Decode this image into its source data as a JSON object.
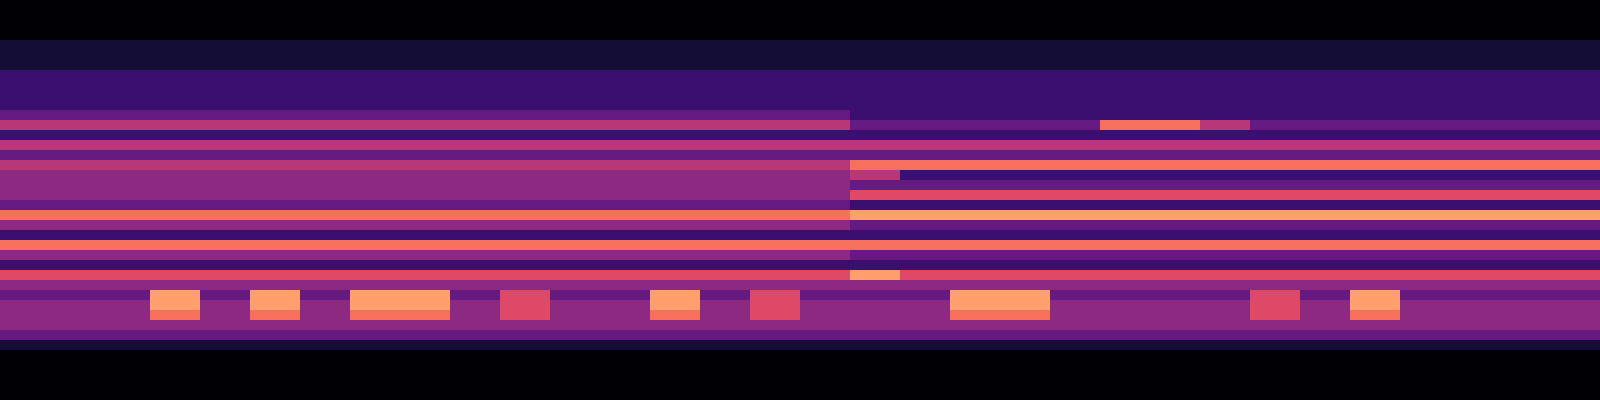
{
  "chart_data": {
    "type": "heatmap",
    "tick_labels": false,
    "zlim": [
      0,
      10
    ],
    "cells": [
      [
        0,
        0,
        0,
        0,
        0,
        0,
        0,
        0,
        0,
        0,
        0,
        0,
        0,
        0,
        0,
        0,
        0,
        0,
        0,
        0,
        0,
        0,
        0,
        0,
        0,
        0,
        0,
        0,
        0,
        0,
        0,
        0
      ],
      [
        0,
        0,
        0,
        0,
        0,
        0,
        0,
        0,
        0,
        0,
        0,
        0,
        0,
        0,
        0,
        0,
        0,
        0,
        0,
        0,
        0,
        0,
        0,
        0,
        0,
        0,
        0,
        0,
        0,
        0,
        0,
        0
      ],
      [
        0,
        0,
        0,
        0,
        0,
        0,
        0,
        0,
        0,
        0,
        0,
        0,
        0,
        0,
        0,
        0,
        0,
        0,
        0,
        0,
        0,
        0,
        0,
        0,
        0,
        0,
        0,
        0,
        0,
        0,
        0,
        0
      ],
      [
        0,
        0,
        0,
        0,
        0,
        0,
        0,
        0,
        0,
        0,
        0,
        0,
        0,
        0,
        0,
        0,
        0,
        0,
        0,
        0,
        0,
        0,
        0,
        0,
        0,
        0,
        0,
        0,
        0,
        0,
        0,
        0
      ],
      [
        1,
        1,
        1,
        1,
        1,
        1,
        1,
        1,
        1,
        1,
        1,
        1,
        1,
        1,
        1,
        1,
        1,
        1,
        1,
        1,
        1,
        1,
        1,
        1,
        1,
        1,
        1,
        1,
        1,
        1,
        1,
        1
      ],
      [
        1,
        1,
        1,
        1,
        1,
        1,
        1,
        1,
        1,
        1,
        1,
        1,
        1,
        1,
        1,
        1,
        1,
        1,
        1,
        1,
        1,
        1,
        1,
        1,
        1,
        1,
        1,
        1,
        1,
        1,
        1,
        1
      ],
      [
        1,
        1,
        1,
        1,
        1,
        1,
        1,
        1,
        1,
        1,
        1,
        1,
        1,
        1,
        1,
        1,
        1,
        1,
        1,
        1,
        1,
        1,
        1,
        1,
        1,
        1,
        1,
        1,
        1,
        1,
        1,
        1
      ],
      [
        2,
        2,
        2,
        2,
        2,
        2,
        2,
        2,
        2,
        2,
        2,
        2,
        2,
        2,
        2,
        2,
        2,
        2,
        2,
        2,
        2,
        2,
        2,
        2,
        2,
        2,
        2,
        2,
        2,
        2,
        2,
        2
      ],
      [
        2,
        2,
        2,
        2,
        2,
        2,
        2,
        2,
        2,
        2,
        2,
        2,
        2,
        2,
        2,
        2,
        2,
        2,
        2,
        2,
        2,
        2,
        2,
        2,
        2,
        2,
        2,
        2,
        2,
        2,
        2,
        2
      ],
      [
        2,
        2,
        2,
        2,
        2,
        2,
        2,
        2,
        2,
        2,
        2,
        2,
        2,
        2,
        2,
        2,
        2,
        2,
        2,
        2,
        2,
        2,
        2,
        2,
        2,
        2,
        2,
        2,
        2,
        2,
        2,
        2
      ],
      [
        2,
        2,
        2,
        2,
        2,
        2,
        2,
        2,
        2,
        2,
        2,
        2,
        2,
        2,
        2,
        2,
        2,
        2,
        2,
        2,
        2,
        2,
        2,
        2,
        2,
        2,
        2,
        2,
        2,
        2,
        2,
        2
      ],
      [
        3,
        3,
        3,
        3,
        3,
        3,
        3,
        3,
        3,
        3,
        3,
        3,
        3,
        3,
        3,
        3,
        3,
        2,
        2,
        2,
        2,
        2,
        2,
        2,
        2,
        2,
        2,
        2,
        2,
        2,
        2,
        2
      ],
      [
        5,
        5,
        5,
        5,
        5,
        5,
        5,
        5,
        5,
        5,
        5,
        5,
        5,
        5,
        5,
        5,
        5,
        3,
        3,
        3,
        3,
        3,
        7,
        7,
        5,
        3,
        3,
        3,
        3,
        3,
        3,
        3
      ],
      [
        2,
        2,
        2,
        2,
        2,
        2,
        2,
        2,
        2,
        2,
        2,
        2,
        2,
        2,
        2,
        2,
        2,
        2,
        2,
        2,
        2,
        2,
        2,
        2,
        2,
        2,
        2,
        2,
        2,
        2,
        2,
        2
      ],
      [
        5,
        5,
        5,
        5,
        5,
        5,
        5,
        5,
        5,
        5,
        5,
        5,
        5,
        5,
        5,
        5,
        5,
        5,
        5,
        5,
        5,
        5,
        5,
        5,
        5,
        5,
        5,
        5,
        5,
        5,
        5,
        5
      ],
      [
        3,
        3,
        3,
        3,
        3,
        3,
        3,
        3,
        3,
        3,
        3,
        3,
        3,
        3,
        3,
        3,
        3,
        3,
        3,
        3,
        3,
        3,
        3,
        3,
        3,
        3,
        3,
        3,
        3,
        3,
        3,
        3
      ],
      [
        5,
        5,
        5,
        5,
        5,
        5,
        5,
        5,
        5,
        5,
        5,
        5,
        5,
        5,
        5,
        5,
        5,
        7,
        7,
        7,
        7,
        7,
        7,
        7,
        7,
        7,
        7,
        7,
        7,
        7,
        7,
        7
      ],
      [
        4,
        4,
        4,
        4,
        4,
        4,
        4,
        4,
        4,
        4,
        4,
        4,
        4,
        4,
        4,
        4,
        4,
        5,
        2,
        2,
        2,
        2,
        2,
        2,
        2,
        2,
        2,
        2,
        2,
        2,
        2,
        2
      ],
      [
        4,
        4,
        4,
        4,
        4,
        4,
        4,
        4,
        4,
        4,
        4,
        4,
        4,
        4,
        4,
        4,
        4,
        3,
        3,
        3,
        3,
        3,
        3,
        3,
        3,
        3,
        3,
        3,
        3,
        3,
        3,
        3
      ],
      [
        4,
        4,
        4,
        4,
        4,
        4,
        4,
        4,
        4,
        4,
        4,
        4,
        4,
        4,
        4,
        4,
        4,
        6,
        6,
        6,
        6,
        6,
        6,
        6,
        6,
        6,
        6,
        6,
        6,
        6,
        6,
        6
      ],
      [
        3,
        3,
        3,
        3,
        3,
        3,
        3,
        3,
        3,
        3,
        3,
        3,
        3,
        3,
        3,
        3,
        3,
        2,
        2,
        2,
        2,
        2,
        2,
        2,
        2,
        2,
        2,
        2,
        2,
        2,
        2,
        2
      ],
      [
        7,
        7,
        7,
        7,
        7,
        7,
        7,
        7,
        7,
        7,
        7,
        7,
        7,
        7,
        7,
        7,
        7,
        8,
        8,
        8,
        8,
        8,
        8,
        8,
        8,
        8,
        8,
        8,
        8,
        8,
        8,
        8
      ],
      [
        4,
        4,
        4,
        4,
        4,
        4,
        4,
        4,
        4,
        4,
        4,
        4,
        4,
        4,
        4,
        4,
        4,
        3,
        3,
        3,
        3,
        3,
        3,
        3,
        3,
        3,
        3,
        3,
        3,
        3,
        3,
        3
      ],
      [
        2,
        2,
        2,
        2,
        2,
        2,
        2,
        2,
        2,
        2,
        2,
        2,
        2,
        2,
        2,
        2,
        2,
        2,
        2,
        2,
        2,
        2,
        2,
        2,
        2,
        2,
        2,
        2,
        2,
        2,
        2,
        2
      ],
      [
        7,
        7,
        7,
        7,
        7,
        7,
        7,
        7,
        7,
        7,
        7,
        7,
        7,
        7,
        7,
        7,
        7,
        7,
        7,
        7,
        7,
        7,
        7,
        7,
        7,
        7,
        7,
        7,
        7,
        7,
        7,
        7
      ],
      [
        4,
        4,
        4,
        4,
        4,
        4,
        4,
        4,
        4,
        4,
        4,
        4,
        4,
        4,
        4,
        4,
        4,
        3,
        3,
        3,
        3,
        3,
        3,
        3,
        3,
        3,
        3,
        3,
        3,
        3,
        3,
        3
      ],
      [
        2,
        2,
        2,
        2,
        2,
        2,
        2,
        2,
        2,
        2,
        2,
        2,
        2,
        2,
        2,
        2,
        2,
        2,
        2,
        2,
        2,
        2,
        2,
        2,
        2,
        2,
        2,
        2,
        2,
        2,
        2,
        2
      ],
      [
        6,
        6,
        6,
        6,
        6,
        6,
        6,
        6,
        6,
        6,
        6,
        6,
        6,
        6,
        6,
        6,
        6,
        8,
        6,
        6,
        6,
        6,
        6,
        6,
        6,
        6,
        6,
        6,
        6,
        6,
        6,
        6
      ],
      [
        4,
        4,
        4,
        4,
        4,
        4,
        4,
        4,
        4,
        4,
        4,
        4,
        4,
        4,
        4,
        4,
        4,
        4,
        4,
        4,
        4,
        4,
        4,
        4,
        4,
        4,
        4,
        4,
        4,
        4,
        4,
        4
      ],
      [
        3,
        3,
        3,
        8,
        3,
        8,
        3,
        8,
        8,
        3,
        6,
        3,
        3,
        8,
        3,
        6,
        3,
        3,
        3,
        8,
        8,
        3,
        3,
        3,
        3,
        6,
        3,
        8,
        3,
        3,
        3,
        3
      ],
      [
        4,
        4,
        4,
        8,
        4,
        8,
        4,
        8,
        8,
        4,
        6,
        4,
        4,
        8,
        4,
        6,
        4,
        4,
        4,
        8,
        8,
        4,
        4,
        4,
        4,
        6,
        4,
        8,
        4,
        4,
        4,
        4
      ],
      [
        4,
        4,
        4,
        7,
        4,
        7,
        4,
        7,
        7,
        4,
        6,
        4,
        4,
        7,
        4,
        6,
        4,
        4,
        4,
        7,
        7,
        4,
        4,
        4,
        4,
        6,
        4,
        7,
        4,
        4,
        4,
        4
      ],
      [
        4,
        4,
        4,
        4,
        4,
        4,
        4,
        4,
        4,
        4,
        4,
        4,
        4,
        4,
        4,
        4,
        4,
        4,
        4,
        4,
        4,
        4,
        4,
        4,
        4,
        4,
        4,
        4,
        4,
        4,
        4,
        4
      ],
      [
        3,
        3,
        3,
        3,
        3,
        3,
        3,
        3,
        3,
        3,
        3,
        3,
        3,
        3,
        3,
        3,
        3,
        3,
        3,
        3,
        3,
        3,
        3,
        3,
        3,
        3,
        3,
        3,
        3,
        3,
        3,
        3
      ],
      [
        1,
        1,
        1,
        1,
        1,
        1,
        1,
        1,
        1,
        1,
        1,
        1,
        1,
        1,
        1,
        1,
        1,
        1,
        1,
        1,
        1,
        1,
        1,
        1,
        1,
        1,
        1,
        1,
        1,
        1,
        1,
        1
      ],
      [
        0,
        0,
        0,
        0,
        0,
        0,
        0,
        0,
        0,
        0,
        0,
        0,
        0,
        0,
        0,
        0,
        0,
        0,
        0,
        0,
        0,
        0,
        0,
        0,
        0,
        0,
        0,
        0,
        0,
        0,
        0,
        0
      ],
      [
        0,
        0,
        0,
        0,
        0,
        0,
        0,
        0,
        0,
        0,
        0,
        0,
        0,
        0,
        0,
        0,
        0,
        0,
        0,
        0,
        0,
        0,
        0,
        0,
        0,
        0,
        0,
        0,
        0,
        0,
        0,
        0
      ],
      [
        0,
        0,
        0,
        0,
        0,
        0,
        0,
        0,
        0,
        0,
        0,
        0,
        0,
        0,
        0,
        0,
        0,
        0,
        0,
        0,
        0,
        0,
        0,
        0,
        0,
        0,
        0,
        0,
        0,
        0,
        0,
        0
      ],
      [
        0,
        0,
        0,
        0,
        0,
        0,
        0,
        0,
        0,
        0,
        0,
        0,
        0,
        0,
        0,
        0,
        0,
        0,
        0,
        0,
        0,
        0,
        0,
        0,
        0,
        0,
        0,
        0,
        0,
        0,
        0,
        0
      ],
      [
        0,
        0,
        0,
        0,
        0,
        0,
        0,
        0,
        0,
        0,
        0,
        0,
        0,
        0,
        0,
        0,
        0,
        0,
        0,
        0,
        0,
        0,
        0,
        0,
        0,
        0,
        0,
        0,
        0,
        0,
        0,
        0
      ]
    ]
  }
}
